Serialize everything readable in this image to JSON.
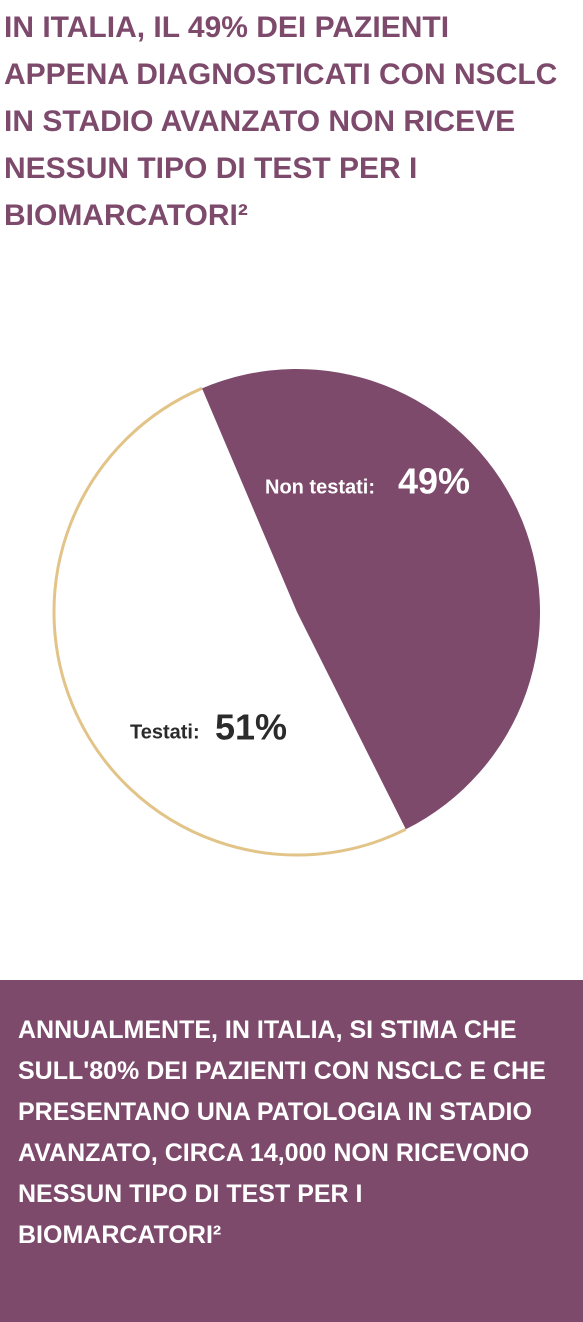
{
  "chart_data": {
    "type": "pie",
    "title": "IN ITALIA, IL 49% DEI PAZIENTI APPENA DIAGNOSTICATI CON NSCLC IN STADIO AVANZATO NON RICEVE NESSUN TIPO DI TEST PER I BIOMARCATORI²",
    "categories": [
      "Non testati:",
      "Testati:"
    ],
    "values": [
      49,
      51
    ],
    "value_labels": [
      "49%",
      "51%"
    ],
    "colors": [
      "#7d4a6c",
      "#ffffff"
    ],
    "edge_color": "#e2c488"
  },
  "footer": {
    "text": "ANNUALMENTE, IN ITALIA, SI STIMA CHE SULL'80% DEI PAZIENTI CON NSCLC E CHE PRESENTANO UNA PATOLOGIA IN STADIO AVANZATO, CIRCA 14,000 NON RICEVONO NESSUN TIPO DI TEST PER I BIOMARCATORI²"
  }
}
